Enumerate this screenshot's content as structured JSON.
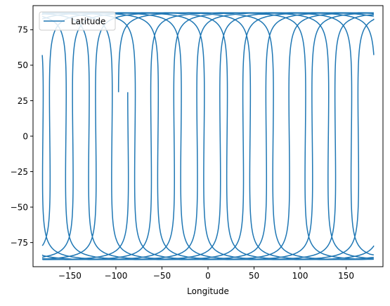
{
  "chart_data": {
    "type": "line",
    "title": "",
    "xlabel": "Longitude",
    "ylabel": "",
    "xlim": [
      -190,
      190
    ],
    "ylim": [
      -92,
      92
    ],
    "grid": false,
    "legend_position": "top-left",
    "x_ticks": [
      -150,
      -100,
      -50,
      0,
      50,
      100,
      150
    ],
    "x_tick_labels": [
      "−150",
      "−100",
      "−50",
      "0",
      "50",
      "100",
      "150"
    ],
    "y_ticks": [
      -75,
      -50,
      -25,
      0,
      25,
      50,
      75
    ],
    "y_tick_labels": [
      "−75",
      "−50",
      "−25",
      "0",
      "25",
      "50",
      "75"
    ],
    "series": [
      {
        "name": "Latitude",
        "color": "#1f77b4",
        "orbit": {
          "inclination_deg": 87,
          "start_longitude": -95,
          "start_latitude": 31,
          "end_longitude": 92,
          "end_latitude": -72,
          "westward_drift_per_orbit_deg": 25,
          "passes": 28
        }
      }
    ]
  }
}
